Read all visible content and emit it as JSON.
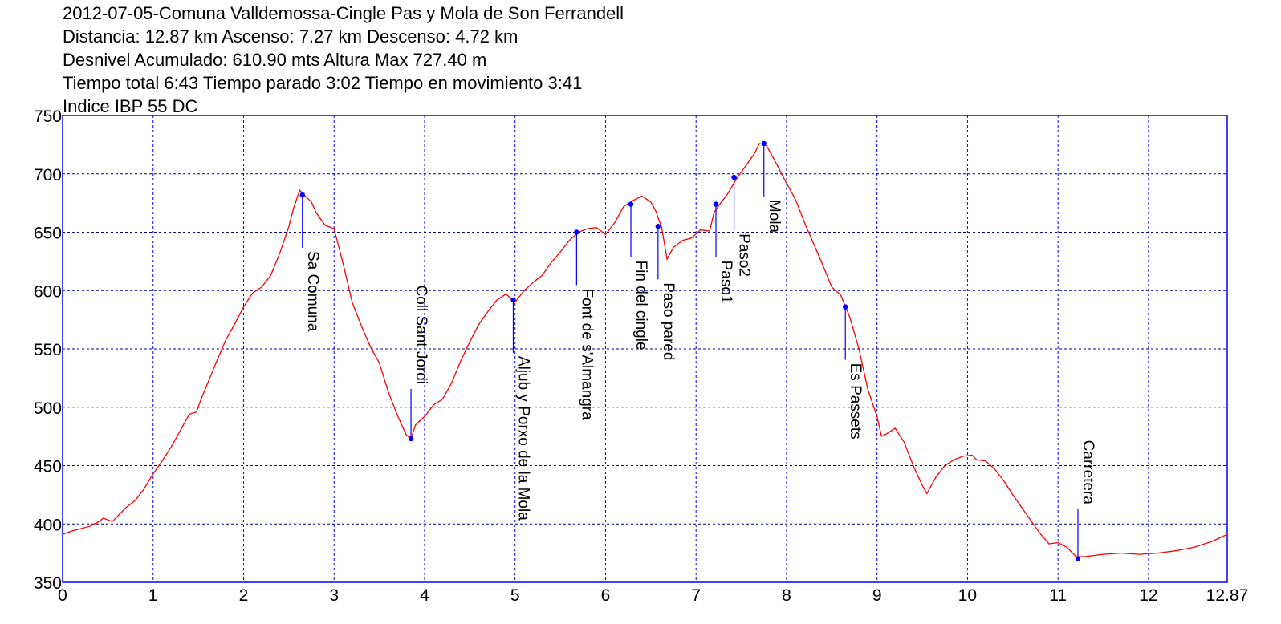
{
  "header": {
    "line1": "2012-07-05-Comuna Valldemossa-Cingle Pas y Mola de Son Ferrandell",
    "line2": "Distancia: 12.87 km Ascenso: 7.27 km Descenso: 4.72 km",
    "line3": "Desnivel Acumulado: 610.90 mts  Altura Max 727.40 m",
    "line4": "Tiempo total 6:43 Tiempo parado 3:02 Tiempo en movimiento 3:41",
    "line5": "Indice IBP 55 DC"
  },
  "chart_data": {
    "type": "line",
    "xlim": [
      0,
      12.87
    ],
    "ylim": [
      350,
      750
    ],
    "x_ticks": [
      0,
      1,
      2,
      3,
      4,
      5,
      6,
      7,
      8,
      9,
      10,
      11,
      12,
      12.87
    ],
    "x_tick_labels": [
      "0",
      "1",
      "2",
      "3",
      "4",
      "5",
      "6",
      "7",
      "8",
      "9",
      "10",
      "11",
      "12",
      "12.87"
    ],
    "y_ticks": [
      350,
      400,
      450,
      500,
      550,
      600,
      650,
      700,
      750
    ],
    "y_tick_labels": [
      "350",
      "400",
      "450",
      "500",
      "550",
      "600",
      "650",
      "700",
      "750"
    ],
    "grid": true,
    "colors": {
      "line": "#ff0000",
      "frame": "#0000ff",
      "grid": "#0000ff",
      "marker": "#0000ff",
      "leader": "#0000ff"
    },
    "profile": [
      [
        0.0,
        391
      ],
      [
        0.1,
        394
      ],
      [
        0.2,
        396
      ],
      [
        0.3,
        398
      ],
      [
        0.4,
        402
      ],
      [
        0.45,
        405
      ],
      [
        0.55,
        402
      ],
      [
        0.6,
        406
      ],
      [
        0.7,
        414
      ],
      [
        0.8,
        420
      ],
      [
        0.9,
        430
      ],
      [
        1.0,
        443
      ],
      [
        1.1,
        454
      ],
      [
        1.2,
        466
      ],
      [
        1.3,
        480
      ],
      [
        1.4,
        494
      ],
      [
        1.48,
        496
      ],
      [
        1.52,
        505
      ],
      [
        1.6,
        520
      ],
      [
        1.7,
        539
      ],
      [
        1.8,
        557
      ],
      [
        1.9,
        571
      ],
      [
        2.0,
        586
      ],
      [
        2.1,
        598
      ],
      [
        2.2,
        603
      ],
      [
        2.3,
        613
      ],
      [
        2.4,
        632
      ],
      [
        2.5,
        655
      ],
      [
        2.55,
        670
      ],
      [
        2.62,
        686
      ],
      [
        2.68,
        681
      ],
      [
        2.75,
        676
      ],
      [
        2.8,
        667
      ],
      [
        2.9,
        656
      ],
      [
        3.0,
        653
      ],
      [
        3.1,
        623
      ],
      [
        3.2,
        590
      ],
      [
        3.3,
        570
      ],
      [
        3.4,
        552
      ],
      [
        3.5,
        538
      ],
      [
        3.6,
        513
      ],
      [
        3.7,
        493
      ],
      [
        3.8,
        476
      ],
      [
        3.85,
        473
      ],
      [
        3.9,
        485
      ],
      [
        4.0,
        492
      ],
      [
        4.1,
        502
      ],
      [
        4.2,
        507
      ],
      [
        4.3,
        521
      ],
      [
        4.4,
        540
      ],
      [
        4.5,
        556
      ],
      [
        4.6,
        571
      ],
      [
        4.7,
        582
      ],
      [
        4.8,
        592
      ],
      [
        4.9,
        597
      ],
      [
        5.0,
        590
      ],
      [
        5.1,
        600
      ],
      [
        5.2,
        607
      ],
      [
        5.3,
        613
      ],
      [
        5.4,
        624
      ],
      [
        5.5,
        633
      ],
      [
        5.6,
        643
      ],
      [
        5.7,
        650
      ],
      [
        5.8,
        653
      ],
      [
        5.9,
        654
      ],
      [
        6.0,
        648
      ],
      [
        6.1,
        658
      ],
      [
        6.2,
        672
      ],
      [
        6.3,
        677
      ],
      [
        6.4,
        681
      ],
      [
        6.5,
        676
      ],
      [
        6.55,
        669
      ],
      [
        6.62,
        654
      ],
      [
        6.68,
        627
      ],
      [
        6.75,
        637
      ],
      [
        6.85,
        643
      ],
      [
        6.95,
        645
      ],
      [
        7.05,
        652
      ],
      [
        7.15,
        651
      ],
      [
        7.2,
        667
      ],
      [
        7.28,
        676
      ],
      [
        7.35,
        683
      ],
      [
        7.45,
        696
      ],
      [
        7.55,
        707
      ],
      [
        7.65,
        718
      ],
      [
        7.7,
        726
      ],
      [
        7.78,
        724
      ],
      [
        7.9,
        707
      ],
      [
        8.0,
        692
      ],
      [
        8.1,
        678
      ],
      [
        8.2,
        658
      ],
      [
        8.3,
        640
      ],
      [
        8.4,
        622
      ],
      [
        8.5,
        603
      ],
      [
        8.6,
        596
      ],
      [
        8.7,
        577
      ],
      [
        8.8,
        550
      ],
      [
        8.9,
        515
      ],
      [
        9.0,
        492
      ],
      [
        9.05,
        475
      ],
      [
        9.1,
        477
      ],
      [
        9.2,
        482
      ],
      [
        9.3,
        470
      ],
      [
        9.4,
        450
      ],
      [
        9.5,
        433
      ],
      [
        9.55,
        426
      ],
      [
        9.65,
        440
      ],
      [
        9.75,
        450
      ],
      [
        9.85,
        455
      ],
      [
        9.95,
        458
      ],
      [
        10.05,
        459
      ],
      [
        10.1,
        455
      ],
      [
        10.2,
        454
      ],
      [
        10.3,
        447
      ],
      [
        10.4,
        437
      ],
      [
        10.5,
        425
      ],
      [
        10.6,
        414
      ],
      [
        10.7,
        403
      ],
      [
        10.8,
        392
      ],
      [
        10.9,
        383
      ],
      [
        11.0,
        384
      ],
      [
        11.1,
        380
      ],
      [
        11.2,
        372
      ],
      [
        11.3,
        372
      ],
      [
        11.4,
        373
      ],
      [
        11.5,
        374
      ],
      [
        11.7,
        375
      ],
      [
        11.9,
        374
      ],
      [
        12.1,
        375
      ],
      [
        12.3,
        377
      ],
      [
        12.5,
        380
      ],
      [
        12.7,
        385
      ],
      [
        12.87,
        391
      ]
    ],
    "waypoints": [
      {
        "name": "Sa Comuna",
        "x": 2.65,
        "y": 682,
        "label_side": "below"
      },
      {
        "name": "Coll Sant Jordi",
        "x": 3.85,
        "y": 473,
        "label_side": "above"
      },
      {
        "name": "Aljub y Porxo de la Mola",
        "x": 4.98,
        "y": 592,
        "label_side": "below"
      },
      {
        "name": "Font de s'Almangra",
        "x": 5.68,
        "y": 650,
        "label_side": "below"
      },
      {
        "name": "Fin del cingle",
        "x": 6.28,
        "y": 674,
        "label_side": "below"
      },
      {
        "name": "Paso pared",
        "x": 6.58,
        "y": 655,
        "label_side": "below"
      },
      {
        "name": "Paso1",
        "x": 7.22,
        "y": 674,
        "label_side": "below"
      },
      {
        "name": "Paso2",
        "x": 7.42,
        "y": 697,
        "label_side": "below"
      },
      {
        "name": "Mola",
        "x": 7.75,
        "y": 726,
        "label_side": "below"
      },
      {
        "name": "Es Passets",
        "x": 8.65,
        "y": 586,
        "label_side": "below"
      },
      {
        "name": "Carretera",
        "x": 11.22,
        "y": 370,
        "label_side": "above"
      }
    ]
  }
}
